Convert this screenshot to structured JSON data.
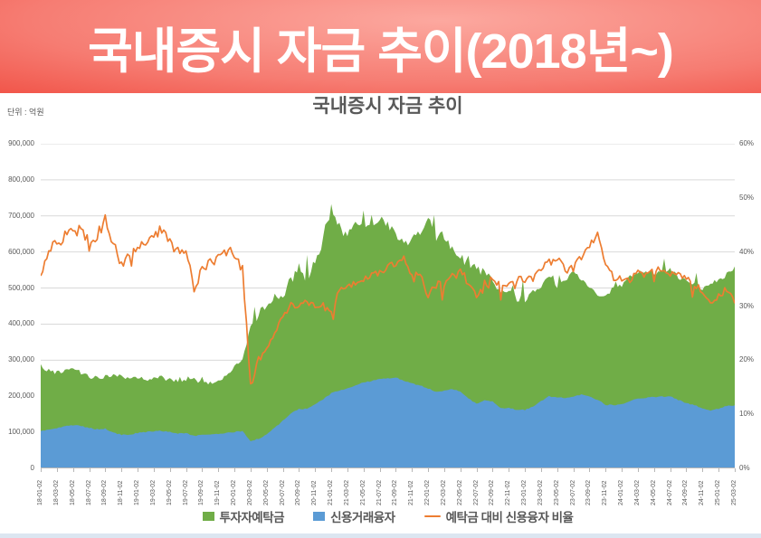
{
  "banner": {
    "title": "국내증시 자금 추이(2018년~)"
  },
  "chart": {
    "title": "국내증시 자금 추이",
    "unit_label": "단위 : 억원",
    "left_axis": {
      "ticks": [
        "900,000",
        "800,000",
        "700,000",
        "600,000",
        "500,000",
        "400,000",
        "300,000",
        "200,000",
        "100,000",
        "0"
      ]
    },
    "right_axis": {
      "ticks": [
        "60%",
        "50%",
        "40%",
        "30%",
        "20%",
        "10%",
        "0%"
      ]
    },
    "legend": [
      {
        "label": "투자자예탁금",
        "color": "#70AD47",
        "type": "area"
      },
      {
        "label": "신용거래융자",
        "color": "#5B9BD5",
        "type": "area"
      },
      {
        "label": "예탁금 대비 신용융자 비율",
        "color": "#ED7D31",
        "type": "line"
      }
    ]
  },
  "colors": {
    "green": "#70AD47",
    "blue": "#5B9BD5",
    "orange": "#ED7D31",
    "grid": "#D9D9D9",
    "axis_text": "#595959",
    "banner_red": "#EE4237",
    "bottom_strip": "#DCE6F1"
  },
  "chart_data": {
    "type": "area",
    "note": "monthly estimates read from plot; areas overlap (not stacked); line uses right axis",
    "start_month": "2018-01",
    "points_per_series": 87,
    "x_labels": [
      "18-01-02",
      "18-03-02",
      "18-05-02",
      "18-07-02",
      "18-09-02",
      "18-11-02",
      "19-01-02",
      "19-03-02",
      "19-05-02",
      "19-07-02",
      "19-09-02",
      "19-11-02",
      "20-01-02",
      "20-03-02",
      "20-05-02",
      "20-07-02",
      "20-09-02",
      "20-11-02",
      "21-01-02",
      "21-03-02",
      "21-05-02",
      "21-07-02",
      "21-09-02",
      "21-11-02",
      "22-01-02",
      "22-03-02",
      "22-05-02",
      "22-07-02",
      "22-09-02",
      "22-11-02",
      "23-01-02",
      "23-03-02",
      "23-05-02",
      "23-07-02",
      "23-09-02",
      "23-11-02",
      "24-01-02",
      "24-03-02",
      "24-05-02",
      "24-07-02",
      "24-09-02",
      "24-11-02",
      "25-01-02",
      "25-03-02"
    ],
    "left_ylim": [
      0,
      900000
    ],
    "right_ylim": [
      0,
      60
    ],
    "grid": true,
    "legend_position": "bottom",
    "series": [
      {
        "name": "투자자예탁금",
        "axis": "left",
        "type": "area",
        "color": "#70AD47",
        "values": [
          285000,
          270000,
          265000,
          270000,
          275000,
          265000,
          255000,
          250000,
          255000,
          260000,
          255000,
          250000,
          250000,
          248000,
          250000,
          252000,
          245000,
          240000,
          245000,
          245000,
          240000,
          238000,
          242000,
          255000,
          285000,
          300000,
          390000,
          430000,
          440000,
          460000,
          475000,
          520000,
          550000,
          520000,
          580000,
          630000,
          720000,
          660000,
          640000,
          680000,
          670000,
          680000,
          690000,
          670000,
          650000,
          620000,
          640000,
          650000,
          700000,
          630000,
          640000,
          610000,
          580000,
          570000,
          550000,
          545000,
          520000,
          490000,
          495000,
          465000,
          465000,
          490000,
          505000,
          530000,
          505000,
          520000,
          545000,
          525000,
          505000,
          480000,
          475000,
          505000,
          505000,
          530000,
          545000,
          545000,
          540000,
          545000,
          550000,
          530000,
          520000,
          510000,
          500000,
          515000,
          520000,
          535000,
          560000
        ]
      },
      {
        "name": "신용거래융자",
        "axis": "left",
        "type": "area",
        "color": "#5B9BD5",
        "values": [
          102000,
          108000,
          112000,
          117000,
          120000,
          118000,
          112000,
          108000,
          110000,
          100000,
          93000,
          94000,
          98000,
          101000,
          103000,
          104000,
          101000,
          97000,
          98000,
          90000,
          92000,
          94000,
          96000,
          98000,
          101000,
          104000,
          75000,
          82000,
          95000,
          112000,
          132000,
          152000,
          165000,
          165000,
          178000,
          192000,
          208000,
          216000,
          222000,
          230000,
          238000,
          243000,
          248000,
          250000,
          252000,
          243000,
          235000,
          230000,
          222000,
          212000,
          216000,
          220000,
          212000,
          195000,
          178000,
          190000,
          185000,
          166000,
          167000,
          162000,
          162000,
          172000,
          186000,
          200000,
          196000,
          195000,
          200000,
          205000,
          200000,
          190000,
          176000,
          176000,
          177000,
          186000,
          194000,
          196000,
          198000,
          199000,
          199000,
          190000,
          181000,
          176000,
          166000,
          160000,
          165000,
          173000,
          175000
        ]
      },
      {
        "name": "예탁금 대비 신용융자 비율",
        "axis": "right",
        "type": "line",
        "color": "#ED7D31",
        "values": [
          36,
          40,
          42,
          43,
          44,
          44,
          42,
          43,
          46,
          41,
          38,
          40,
          41,
          42,
          43,
          44,
          42,
          40,
          41,
          33,
          37,
          38,
          39,
          40,
          40,
          37,
          15,
          20,
          22,
          25,
          28,
          30,
          30,
          31,
          30,
          30,
          29,
          33,
          34,
          34,
          35,
          36,
          36,
          37,
          38,
          39,
          36,
          36,
          32,
          34,
          34,
          36,
          37,
          34,
          32,
          35,
          35,
          34,
          34,
          35,
          35,
          35,
          37,
          38,
          39,
          37,
          37,
          39,
          41,
          43,
          38,
          35,
          35,
          35,
          36,
          36,
          37,
          37,
          36,
          36,
          35,
          34,
          33,
          31,
          32,
          33,
          30.5
        ]
      }
    ]
  }
}
